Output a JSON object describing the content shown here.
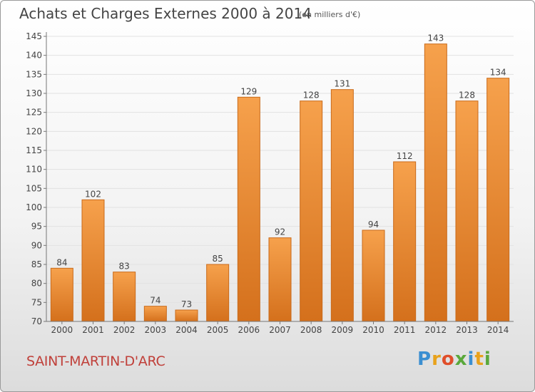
{
  "title": "Achats et Charges Externes 2000 à 2014",
  "unit_note": "(en milliers d'€)",
  "commune": "SAINT-MARTIN-D'ARC",
  "logo": {
    "text": "Proxiti",
    "letters": [
      {
        "ch": "P",
        "color": "#3b8fd1"
      },
      {
        "ch": "r",
        "color": "#e8a21c"
      },
      {
        "ch": "o",
        "color": "#e04e2a"
      },
      {
        "ch": "x",
        "color": "#5aa83b"
      },
      {
        "ch": "i",
        "color": "#3b8fd1"
      },
      {
        "ch": "t",
        "color": "#e8a21c"
      },
      {
        "ch": "i",
        "color": "#5aa83b"
      }
    ]
  },
  "colors": {
    "bar_light": "#f6a14c",
    "bar_dark": "#d4701c",
    "bar_edge": "#c96a1a",
    "grid": "#e2e2e2",
    "axis": "#777777",
    "text": "#444444"
  },
  "chart_data": {
    "type": "bar",
    "title": "Achats et Charges Externes 2000 à 2014",
    "categories": [
      "2000",
      "2001",
      "2002",
      "2003",
      "2004",
      "2005",
      "2006",
      "2007",
      "2008",
      "2009",
      "2010",
      "2011",
      "2012",
      "2013",
      "2014"
    ],
    "values": [
      84,
      102,
      83,
      74,
      73,
      85,
      129,
      92,
      128,
      131,
      94,
      112,
      143,
      128,
      134
    ],
    "ylim": [
      70,
      145
    ],
    "yticks": [
      70,
      75,
      80,
      85,
      90,
      95,
      100,
      105,
      110,
      115,
      120,
      125,
      130,
      135,
      140,
      145
    ],
    "grid": true,
    "xlabel": "",
    "ylabel": ""
  }
}
